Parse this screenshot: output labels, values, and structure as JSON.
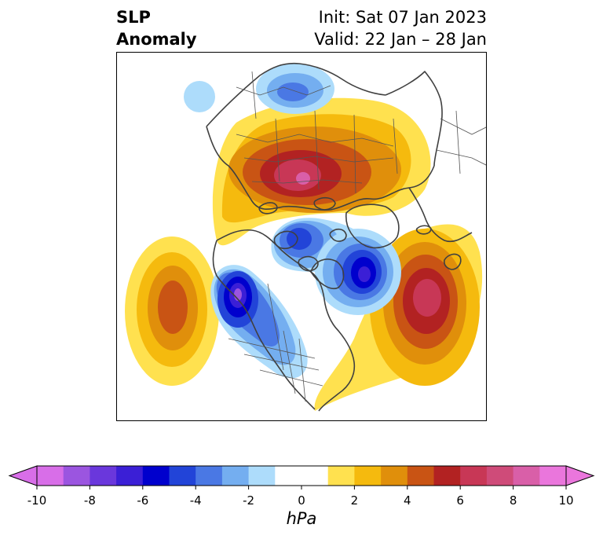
{
  "title": {
    "left_line1": "SLP",
    "left_line2": "Anomaly",
    "init": "Init: Sat 07 Jan 2023",
    "valid": "Valid: 22 Jan – 28 Jan"
  },
  "colorbar": {
    "unit": "hPa",
    "min": -10,
    "max": 10,
    "ticks": [
      "-10",
      "-8",
      "-6",
      "-4",
      "-2",
      "0",
      "2",
      "4",
      "6",
      "8",
      "10"
    ],
    "extend": "both",
    "colors": [
      "#d86ee8",
      "#9b55e0",
      "#6a37dc",
      "#3b1fd6",
      "#0000cd",
      "#2244d8",
      "#4a78e4",
      "#74aef0",
      "#addcfb",
      "#ffffff",
      "#ffffff",
      "#ffe14f",
      "#f5ba0e",
      "#e08f0b",
      "#c95414",
      "#b22222",
      "#c83756",
      "#cf4b79",
      "#d95fa8",
      "#ea76dc"
    ]
  },
  "map": {
    "projection": "north-polar-stereographic",
    "highs": [
      "North Pacific",
      "Arctic / Eurasia",
      "North Atlantic"
    ],
    "lows": [
      "Gulf of Alaska",
      "Arctic Canada",
      "Greenland / Labrador",
      "Siberia"
    ]
  }
}
